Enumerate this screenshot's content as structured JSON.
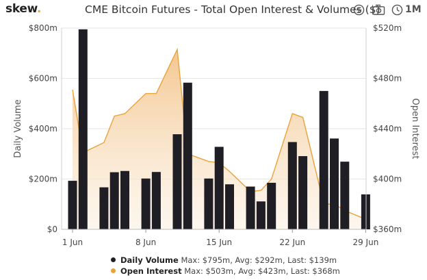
{
  "header": {
    "logo_text": "skew",
    "logo_dot": ".",
    "title": "CME Bitcoin Futures - Total Open Interest & Volumes ($)",
    "add_icon": "plus-circle-icon",
    "camera_icon": "camera-icon",
    "clock_icon": "clock-icon",
    "range_label": "1M"
  },
  "colors": {
    "bar": "#1e1e24",
    "area_line": "#e8a33a",
    "area_fill_top": "#f3c88d",
    "grid": "#e6e6e6"
  },
  "chart_data": {
    "type": "bar+area",
    "x_tick_labels": [
      "1 Jun",
      "8 Jun",
      "15 Jun",
      "22 Jun",
      "29 Jun"
    ],
    "dates": [
      "1 Jun",
      "2 Jun",
      "3 Jun",
      "4 Jun",
      "5 Jun",
      "6 Jun",
      "7 Jun",
      "8 Jun",
      "9 Jun",
      "10 Jun",
      "11 Jun",
      "12 Jun",
      "13 Jun",
      "14 Jun",
      "15 Jun",
      "16 Jun",
      "17 Jun",
      "18 Jun",
      "19 Jun",
      "20 Jun",
      "21 Jun",
      "22 Jun",
      "23 Jun",
      "24 Jun",
      "25 Jun",
      "26 Jun",
      "27 Jun",
      "28 Jun",
      "29 Jun",
      "30 Jun"
    ],
    "left_axis": {
      "label": "Daily Volume",
      "ticks": [
        "$0",
        "$200m",
        "$400m",
        "$600m",
        "$800m"
      ],
      "min": 0,
      "max": 800
    },
    "right_axis": {
      "label": "Open Interest",
      "ticks": [
        "$360m",
        "$400m",
        "$440m",
        "$480m",
        "$520m"
      ],
      "min": 360,
      "max": 520
    },
    "series": [
      {
        "name": "Daily Volume",
        "kind": "bar",
        "unit": "$m",
        "points": [
          {
            "date": "1 Jun",
            "value": 193
          },
          {
            "date": "2 Jun",
            "value": 795
          },
          {
            "date": "4 Jun",
            "value": 167
          },
          {
            "date": "5 Jun",
            "value": 227
          },
          {
            "date": "6 Jun",
            "value": 232
          },
          {
            "date": "8 Jun",
            "value": 202
          },
          {
            "date": "9 Jun",
            "value": 228
          },
          {
            "date": "11 Jun",
            "value": 378
          },
          {
            "date": "12 Jun",
            "value": 583
          },
          {
            "date": "14 Jun",
            "value": 202
          },
          {
            "date": "15 Jun",
            "value": 328
          },
          {
            "date": "16 Jun",
            "value": 179
          },
          {
            "date": "18 Jun",
            "value": 170
          },
          {
            "date": "19 Jun",
            "value": 111
          },
          {
            "date": "20 Jun",
            "value": 185
          },
          {
            "date": "22 Jun",
            "value": 347
          },
          {
            "date": "23 Jun",
            "value": 291
          },
          {
            "date": "25 Jun",
            "value": 550
          },
          {
            "date": "26 Jun",
            "value": 361
          },
          {
            "date": "27 Jun",
            "value": 269
          },
          {
            "date": "29 Jun",
            "value": 139
          }
        ]
      },
      {
        "name": "Open Interest",
        "kind": "area",
        "unit": "$m",
        "points": [
          {
            "date": "1 Jun",
            "value": 471
          },
          {
            "date": "2 Jun",
            "value": 421
          },
          {
            "date": "4 Jun",
            "value": 429
          },
          {
            "date": "5 Jun",
            "value": 450
          },
          {
            "date": "6 Jun",
            "value": 452
          },
          {
            "date": "8 Jun",
            "value": 468
          },
          {
            "date": "9 Jun",
            "value": 468
          },
          {
            "date": "11 Jun",
            "value": 503
          },
          {
            "date": "12 Jun",
            "value": 420
          },
          {
            "date": "14 Jun",
            "value": 414
          },
          {
            "date": "15 Jun",
            "value": 413
          },
          {
            "date": "16 Jun",
            "value": 406
          },
          {
            "date": "18 Jun",
            "value": 390
          },
          {
            "date": "19 Jun",
            "value": 391
          },
          {
            "date": "20 Jun",
            "value": 400
          },
          {
            "date": "22 Jun",
            "value": 452
          },
          {
            "date": "23 Jun",
            "value": 449
          },
          {
            "date": "25 Jun",
            "value": 380
          },
          {
            "date": "26 Jun",
            "value": 380
          },
          {
            "date": "27 Jun",
            "value": 375
          },
          {
            "date": "29 Jun",
            "value": 368
          }
        ]
      }
    ]
  },
  "legend": {
    "volume_name": "Daily Volume",
    "volume_stats": "Max: $795m, Avg: $292m, Last: $139m",
    "oi_name": "Open Interest",
    "oi_stats": "Max: $503m, Avg: $423m, Last: $368m"
  }
}
